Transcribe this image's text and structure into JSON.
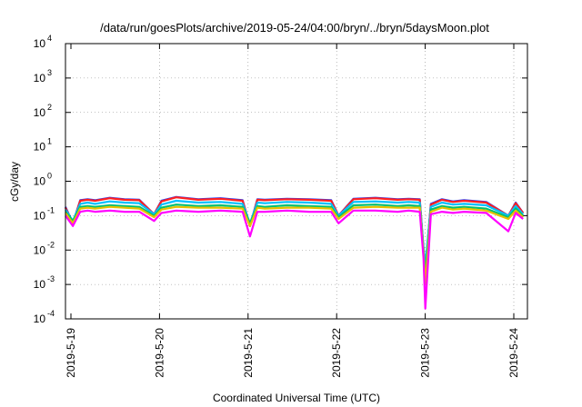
{
  "chart_data": {
    "type": "line",
    "title": "/data/run/goesPlots/archive/2019-05-24/04:00/bryn/../bryn/5daysMoon.plot",
    "xlabel": "Coordinated Universal Time (UTC)",
    "ylabel": "cGy/day",
    "y_scale": "log",
    "ylim": [
      0.0001,
      10000
    ],
    "xlim": [
      "2019-05-19T00:00",
      "2019-05-24T04:00"
    ],
    "grid": true,
    "x_ticks": [
      "2019-5-19",
      "2019-5-20",
      "2019-5-21",
      "2019-5-22",
      "2019-5-23",
      "2019-5-24"
    ],
    "y_ticks": [
      {
        "base": "10",
        "exp": "-4"
      },
      {
        "base": "10",
        "exp": "-3"
      },
      {
        "base": "10",
        "exp": "-2"
      },
      {
        "base": "10",
        "exp": "-1"
      },
      {
        "base": "10",
        "exp": "0"
      },
      {
        "base": "10",
        "exp": "1"
      },
      {
        "base": "10",
        "exp": "2"
      },
      {
        "base": "10",
        "exp": "3"
      },
      {
        "base": "10",
        "exp": "4"
      }
    ],
    "x": [
      "2019-05-19T00:00",
      "2019-05-19T02:00",
      "2019-05-19T04:00",
      "2019-05-19T06:00",
      "2019-05-19T08:00",
      "2019-05-19T12:00",
      "2019-05-19T16:00",
      "2019-05-19T20:00",
      "2019-05-20T00:00",
      "2019-05-20T02:00",
      "2019-05-20T06:00",
      "2019-05-20T12:00",
      "2019-05-20T18:00",
      "2019-05-21T00:00",
      "2019-05-21T02:00",
      "2019-05-21T04:00",
      "2019-05-21T06:00",
      "2019-05-21T12:00",
      "2019-05-21T18:00",
      "2019-05-22T00:00",
      "2019-05-22T02:00",
      "2019-05-22T06:00",
      "2019-05-22T12:00",
      "2019-05-22T18:00",
      "2019-05-22T21:00",
      "2019-05-23T00:00",
      "2019-05-23T01:00",
      "2019-05-23T01:30",
      "2019-05-23T03:00",
      "2019-05-23T06:00",
      "2019-05-23T09:00",
      "2019-05-23T12:00",
      "2019-05-23T18:00",
      "2019-05-24T00:00",
      "2019-05-24T02:00",
      "2019-05-24T04:00"
    ],
    "series": [
      {
        "color": "#1f3fff",
        "values": [
          0.18,
          0.06,
          0.28,
          0.3,
          0.28,
          0.33,
          0.3,
          0.29,
          0.11,
          0.27,
          0.35,
          0.3,
          0.32,
          0.28,
          0.05,
          0.3,
          0.29,
          0.31,
          0.3,
          0.28,
          0.1,
          0.31,
          0.33,
          0.3,
          0.31,
          0.3,
          0.01,
          0.0025,
          0.22,
          0.3,
          0.26,
          0.28,
          0.25,
          0.1,
          0.24,
          0.12
        ]
      },
      {
        "color": "#ff1f1f",
        "values": [
          0.17,
          0.06,
          0.27,
          0.29,
          0.27,
          0.32,
          0.29,
          0.28,
          0.11,
          0.26,
          0.34,
          0.29,
          0.31,
          0.27,
          0.05,
          0.29,
          0.28,
          0.3,
          0.29,
          0.27,
          0.1,
          0.3,
          0.32,
          0.29,
          0.3,
          0.29,
          0.01,
          0.0025,
          0.21,
          0.29,
          0.25,
          0.27,
          0.24,
          0.1,
          0.23,
          0.12
        ]
      },
      {
        "color": "#00bfff",
        "values": [
          0.15,
          0.07,
          0.22,
          0.24,
          0.22,
          0.26,
          0.24,
          0.23,
          0.11,
          0.21,
          0.27,
          0.24,
          0.25,
          0.22,
          0.06,
          0.24,
          0.23,
          0.25,
          0.24,
          0.22,
          0.1,
          0.25,
          0.26,
          0.24,
          0.25,
          0.24,
          0.012,
          0.0035,
          0.18,
          0.24,
          0.21,
          0.22,
          0.2,
          0.1,
          0.19,
          0.11
        ]
      },
      {
        "color": "#00c070",
        "values": [
          0.13,
          0.07,
          0.18,
          0.19,
          0.18,
          0.2,
          0.19,
          0.18,
          0.1,
          0.17,
          0.21,
          0.19,
          0.2,
          0.18,
          0.06,
          0.19,
          0.18,
          0.2,
          0.19,
          0.18,
          0.09,
          0.2,
          0.21,
          0.19,
          0.2,
          0.19,
          0.01,
          0.002,
          0.15,
          0.19,
          0.17,
          0.18,
          0.16,
          0.09,
          0.16,
          0.1
        ]
      },
      {
        "color": "#e8c000",
        "values": [
          0.12,
          0.06,
          0.16,
          0.17,
          0.16,
          0.18,
          0.17,
          0.16,
          0.09,
          0.15,
          0.18,
          0.17,
          0.17,
          0.16,
          0.05,
          0.17,
          0.16,
          0.17,
          0.17,
          0.16,
          0.08,
          0.17,
          0.18,
          0.17,
          0.17,
          0.17,
          0.008,
          0.001,
          0.13,
          0.17,
          0.15,
          0.16,
          0.14,
          0.08,
          0.14,
          0.09
        ]
      },
      {
        "color": "#ff00ff",
        "values": [
          0.1,
          0.05,
          0.13,
          0.14,
          0.13,
          0.14,
          0.13,
          0.13,
          0.07,
          0.12,
          0.14,
          0.13,
          0.14,
          0.13,
          0.025,
          0.13,
          0.13,
          0.14,
          0.13,
          0.13,
          0.06,
          0.14,
          0.14,
          0.13,
          0.14,
          0.13,
          0.006,
          0.0002,
          0.11,
          0.13,
          0.12,
          0.13,
          0.12,
          0.035,
          0.12,
          0.08
        ]
      }
    ]
  }
}
